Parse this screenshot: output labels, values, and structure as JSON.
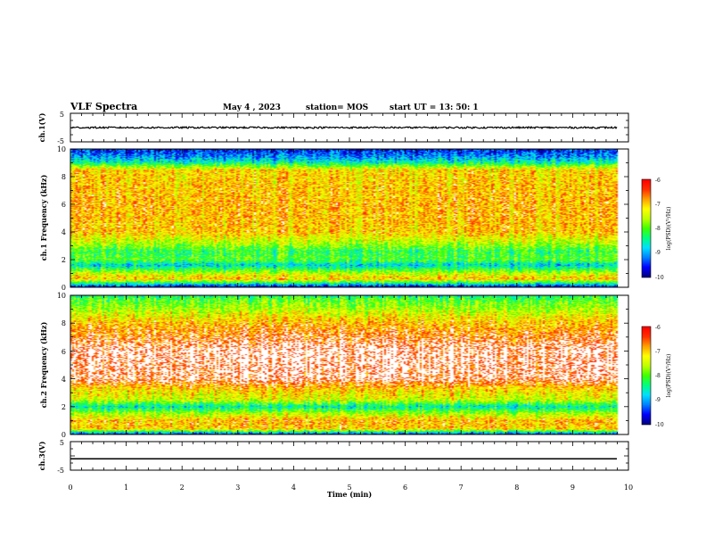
{
  "header": {
    "title": "VLF Spectra",
    "date": "May 4 , 2023",
    "station": "station= MOS",
    "start_ut": "start UT = 13: 50: 1"
  },
  "colors": {
    "colormap": [
      "#00007f",
      "#0000ff",
      "#0080ff",
      "#00e0ff",
      "#00ff80",
      "#40ff00",
      "#c0ff00",
      "#ffff00",
      "#ffa000",
      "#ff3000",
      "#ff0000"
    ],
    "trace": "#000000",
    "background": "#ffffff"
  },
  "chart_data": [
    {
      "type": "line",
      "name": "ch.1 waveform panel",
      "ylabel": "ch.1(V)",
      "ylim": [
        -5,
        5
      ],
      "yticks": [
        "5",
        "-5"
      ],
      "xlim": [
        0,
        10
      ],
      "series": [
        {
          "x": [
            0,
            9.8
          ],
          "y": [
            0,
            0
          ]
        }
      ]
    },
    {
      "type": "heatmap",
      "name": "ch.1 spectrogram",
      "ylabel": "ch.1 Frequency (kHz)",
      "ylim": [
        0,
        10
      ],
      "yticks": [
        "10",
        "8",
        "6",
        "4",
        "2",
        "0"
      ],
      "xlim": [
        0,
        9.8
      ],
      "z_label": "log(PSD)(V²/Hz)",
      "z_range": [
        -10,
        -6
      ],
      "z_ticks": [
        "-6",
        "-7",
        "-8",
        "-9",
        "-10"
      ],
      "profile_khz": [
        0,
        0.6,
        1.0,
        1.6,
        2.0,
        2.6,
        3.2,
        4.0,
        6.0,
        8.5,
        9.0,
        9.5,
        10
      ],
      "profile_log_psd": [
        -9.8,
        -7.0,
        -7.5,
        -8.8,
        -8.0,
        -8.2,
        -7.6,
        -7.0,
        -6.9,
        -7.1,
        -8.5,
        -9.2,
        -9.6
      ]
    },
    {
      "type": "heatmap",
      "name": "ch.2 spectrogram",
      "ylabel": "ch.2 Frequency (kHz)",
      "ylim": [
        0,
        10
      ],
      "yticks": [
        "10",
        "8",
        "6",
        "4",
        "2",
        "0"
      ],
      "xlim": [
        0,
        9.8
      ],
      "z_label": "log(PSD)(V²/Hz)",
      "z_range": [
        -10,
        -6
      ],
      "z_ticks": [
        "-6",
        "-7",
        "-8",
        "-9",
        "-10"
      ],
      "profile_khz": [
        0,
        0.4,
        1.0,
        1.5,
        2.0,
        2.5,
        3.2,
        4.0,
        6.0,
        8.0,
        9.0,
        9.7,
        10
      ],
      "profile_log_psd": [
        -9.6,
        -7.0,
        -6.9,
        -7.6,
        -8.6,
        -7.4,
        -7.1,
        -6.2,
        -6.1,
        -6.9,
        -7.6,
        -8.0,
        -8.4
      ]
    },
    {
      "type": "line",
      "name": "ch.3 waveform panel",
      "ylabel": "ch.3(V)",
      "ylim": [
        -5,
        5
      ],
      "yticks": [
        "5",
        "-5"
      ],
      "xlim": [
        0,
        10
      ],
      "xlabel": "Time (min)",
      "xticks": [
        "0",
        "1",
        "2",
        "3",
        "4",
        "5",
        "6",
        "7",
        "8",
        "9",
        "10"
      ],
      "series": [
        {
          "x": [
            0,
            9.8
          ],
          "y": [
            -1,
            -1
          ]
        }
      ]
    }
  ]
}
